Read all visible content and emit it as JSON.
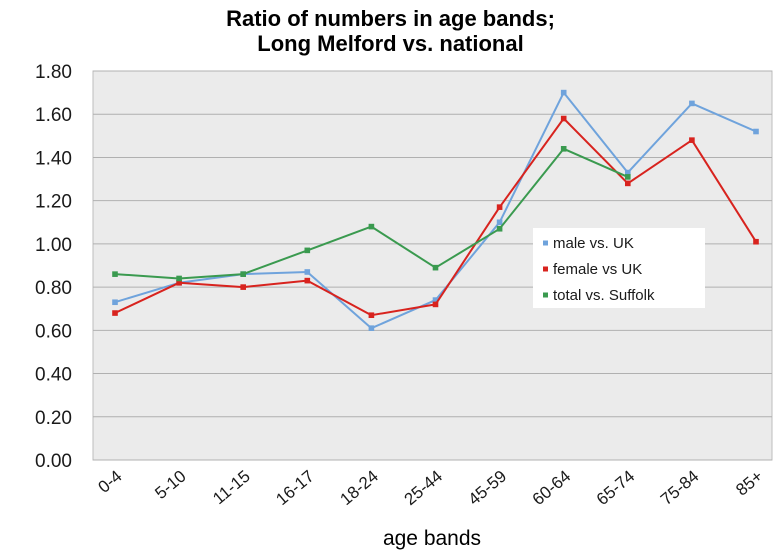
{
  "chart_data": {
    "type": "line",
    "title_line1": "Ratio of numbers in age bands;",
    "title_line2": "Long Melford vs. national",
    "xlabel": "age bands",
    "ylabel": "",
    "categories": [
      "0-4",
      "5-10",
      "11-15",
      "16-17",
      "18-24",
      "25-44",
      "45-59",
      "60-64",
      "65-74",
      "75-84",
      "85+"
    ],
    "yticks": [
      "0.00",
      "0.20",
      "0.40",
      "0.60",
      "0.80",
      "1.00",
      "1.20",
      "1.40",
      "1.60",
      "1.80"
    ],
    "ylim": [
      0,
      1.8
    ],
    "grid": true,
    "legend_position": "right, mid-height",
    "series": [
      {
        "name": "male vs. UK",
        "color": "#6fa3dc",
        "values": [
          0.73,
          0.82,
          0.86,
          0.87,
          0.61,
          0.74,
          1.1,
          1.7,
          1.33,
          1.65,
          1.52
        ]
      },
      {
        "name": "female vs UK",
        "color": "#d8231e",
        "values": [
          0.68,
          0.82,
          0.8,
          0.83,
          0.67,
          0.72,
          1.17,
          1.58,
          1.28,
          1.48,
          1.01
        ]
      },
      {
        "name": "total vs. Suffolk",
        "color": "#3a9a4f",
        "values": [
          0.86,
          0.84,
          0.86,
          0.97,
          1.08,
          0.89,
          1.07,
          1.44,
          1.31,
          null,
          null
        ]
      }
    ]
  }
}
